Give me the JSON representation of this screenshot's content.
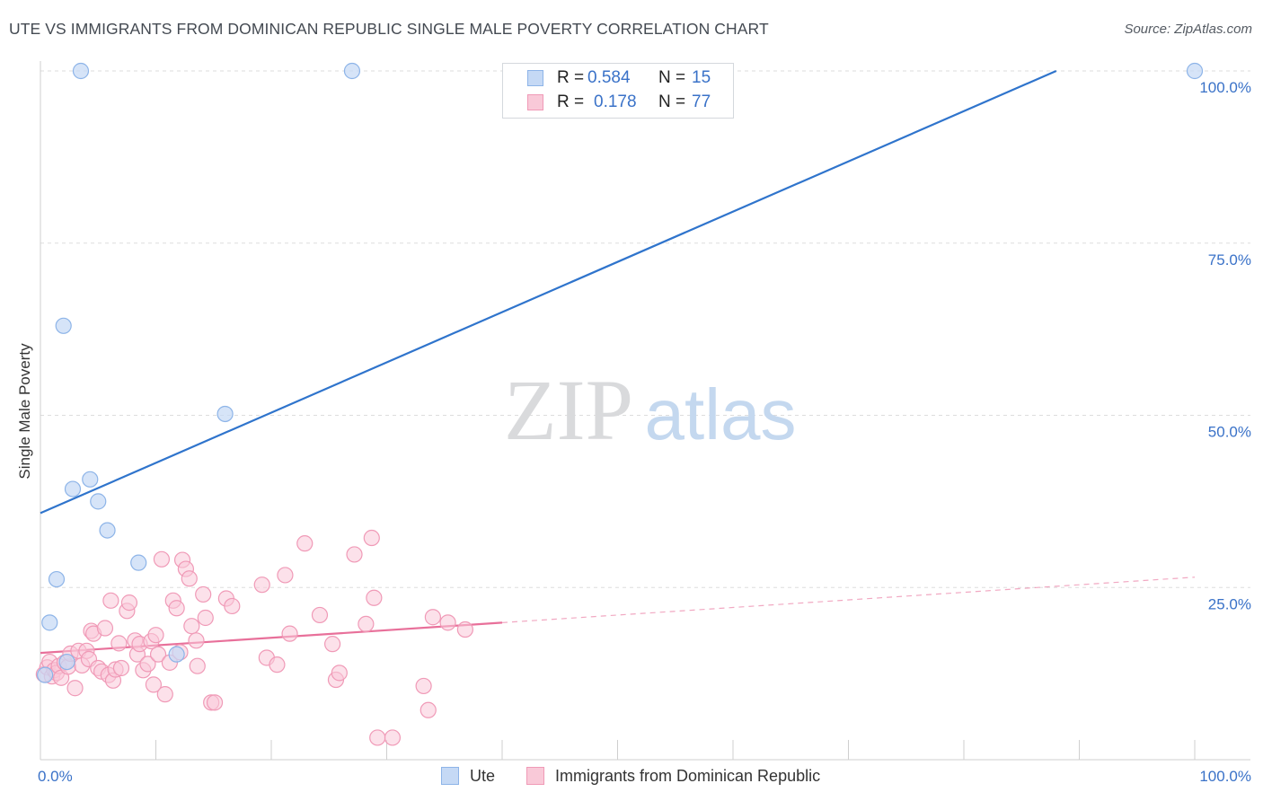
{
  "header": {
    "title": "UTE VS IMMIGRANTS FROM DOMINICAN REPUBLIC SINGLE MALE POVERTY CORRELATION CHART",
    "source": "Source: ZipAtlas.com"
  },
  "watermark": {
    "zip": "ZIP",
    "atlas": "atlas"
  },
  "stats": [
    {
      "r_label": "R =",
      "r_value": "0.584",
      "n_label": "N =",
      "n_value": "15"
    },
    {
      "r_label": "R =",
      "r_value": "0.178",
      "n_label": "N =",
      "n_value": "77"
    }
  ],
  "legend": {
    "items": [
      {
        "label": "Ute"
      },
      {
        "label": "Immigrants from Dominican Republic"
      }
    ]
  },
  "colors": {
    "ute_fill": "#c5d9f5",
    "ute_stroke": "#8db4e8",
    "ute_line": "#2f74cc",
    "dom_fill": "#f9c9d8",
    "dom_stroke": "#f09ab7",
    "dom_line": "#e8709a",
    "tick_label": "#3a72c8",
    "grid": "#dddddd"
  },
  "chart_data": {
    "type": "scatter",
    "title": "UTE VS IMMIGRANTS FROM DOMINICAN REPUBLIC SINGLE MALE POVERTY CORRELATION CHART",
    "xlabel": "",
    "ylabel": "Single Male Poverty",
    "xlim": [
      0,
      100
    ],
    "ylim": [
      0,
      100
    ],
    "x_tick_labels": [
      {
        "value": 0,
        "label": "0.0%"
      },
      {
        "value": 100,
        "label": "100.0%"
      }
    ],
    "y_tick_labels": [
      {
        "value": 25,
        "label": "25.0%"
      },
      {
        "value": 50,
        "label": "50.0%"
      },
      {
        "value": 75,
        "label": "75.0%"
      },
      {
        "value": 100,
        "label": "100.0%"
      }
    ],
    "series": [
      {
        "name": "Ute",
        "R": 0.584,
        "N": 15,
        "points": [
          [
            3.5,
            100
          ],
          [
            27,
            100
          ],
          [
            100,
            100
          ],
          [
            2,
            63
          ],
          [
            16,
            50.2
          ],
          [
            4.3,
            40.7
          ],
          [
            2.8,
            39.3
          ],
          [
            5,
            37.5
          ],
          [
            5.8,
            33.3
          ],
          [
            8.5,
            28.6
          ],
          [
            1.4,
            26.2
          ],
          [
            0.8,
            19.9
          ],
          [
            2.3,
            14.2
          ],
          [
            11.8,
            15.3
          ],
          [
            0.4,
            12.3
          ]
        ],
        "trend": {
          "x": [
            0,
            88
          ],
          "y": [
            35.8,
            100
          ]
        }
      },
      {
        "name": "Immigrants from Dominican Republic",
        "R": 0.178,
        "N": 77,
        "points": [
          [
            0.3,
            12.4
          ],
          [
            0.6,
            13.4
          ],
          [
            0.8,
            14.2
          ],
          [
            1.0,
            12.1
          ],
          [
            1.2,
            13.0
          ],
          [
            1.4,
            12.6
          ],
          [
            1.6,
            13.6
          ],
          [
            1.8,
            11.9
          ],
          [
            2.1,
            14.1
          ],
          [
            2.4,
            13.5
          ],
          [
            2.6,
            15.4
          ],
          [
            3.0,
            10.4
          ],
          [
            3.3,
            15.8
          ],
          [
            3.6,
            13.7
          ],
          [
            4.0,
            15.8
          ],
          [
            4.2,
            14.6
          ],
          [
            4.4,
            18.7
          ],
          [
            4.6,
            18.3
          ],
          [
            5.0,
            13.3
          ],
          [
            5.3,
            12.8
          ],
          [
            5.6,
            19.1
          ],
          [
            5.9,
            12.3
          ],
          [
            6.1,
            23.1
          ],
          [
            6.3,
            11.5
          ],
          [
            6.5,
            13.1
          ],
          [
            6.8,
            16.9
          ],
          [
            7.0,
            13.3
          ],
          [
            7.5,
            21.6
          ],
          [
            7.7,
            22.8
          ],
          [
            8.2,
            17.3
          ],
          [
            8.4,
            15.3
          ],
          [
            8.6,
            16.8
          ],
          [
            8.9,
            13.0
          ],
          [
            9.3,
            13.9
          ],
          [
            9.6,
            17.2
          ],
          [
            9.8,
            10.9
          ],
          [
            10.0,
            18.1
          ],
          [
            10.2,
            15.3
          ],
          [
            10.5,
            29.1
          ],
          [
            10.8,
            9.5
          ],
          [
            11.2,
            14.1
          ],
          [
            11.5,
            23.1
          ],
          [
            11.8,
            22.0
          ],
          [
            12.1,
            15.6
          ],
          [
            12.3,
            29.0
          ],
          [
            12.6,
            27.7
          ],
          [
            12.9,
            26.3
          ],
          [
            13.1,
            19.4
          ],
          [
            13.6,
            13.6
          ],
          [
            14.1,
            24.0
          ],
          [
            14.3,
            20.6
          ],
          [
            14.8,
            8.3
          ],
          [
            15.1,
            8.3
          ],
          [
            16.1,
            23.4
          ],
          [
            16.6,
            22.3
          ],
          [
            19.2,
            25.4
          ],
          [
            19.6,
            14.8
          ],
          [
            20.5,
            13.8
          ],
          [
            21.2,
            26.8
          ],
          [
            21.6,
            18.3
          ],
          [
            22.9,
            31.4
          ],
          [
            24.2,
            21.0
          ],
          [
            25.3,
            16.8
          ],
          [
            25.6,
            11.6
          ],
          [
            25.9,
            12.6
          ],
          [
            27.2,
            29.8
          ],
          [
            28.2,
            19.7
          ],
          [
            28.7,
            32.2
          ],
          [
            28.9,
            23.5
          ],
          [
            29.2,
            3.2
          ],
          [
            30.5,
            3.2
          ],
          [
            33.2,
            10.7
          ],
          [
            33.6,
            7.2
          ],
          [
            34.0,
            20.7
          ],
          [
            35.3,
            19.9
          ],
          [
            36.8,
            18.9
          ],
          [
            13.5,
            17.3
          ]
        ],
        "trend": {
          "x": [
            0,
            40
          ],
          "y": [
            15.5,
            19.9
          ]
        },
        "trend_extension": {
          "x": [
            40,
            100
          ],
          "y": [
            19.9,
            26.5
          ]
        }
      }
    ]
  }
}
